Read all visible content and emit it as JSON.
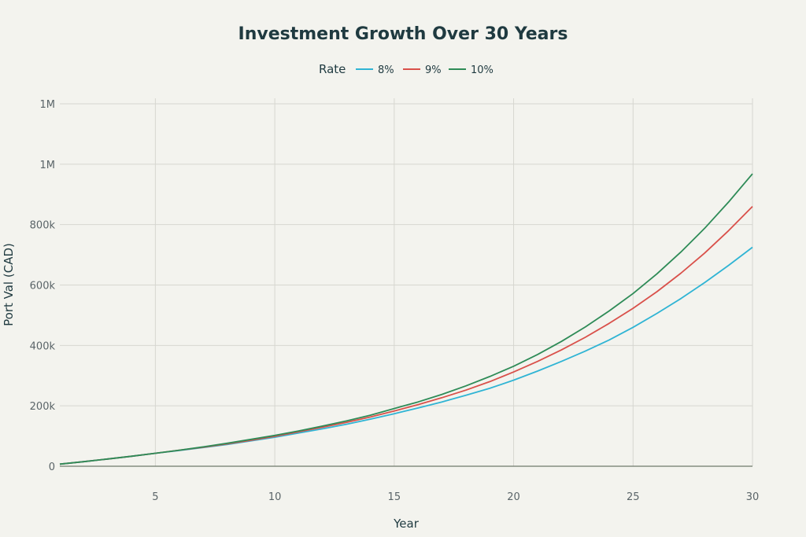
{
  "chart_data": {
    "type": "line",
    "title": "Investment Growth Over 30 Years",
    "xlabel": "Year",
    "ylabel": "Port Val (CAD)",
    "legend_title": "Rate",
    "legend_position": "top-center",
    "grid": true,
    "x": [
      1,
      2,
      3,
      4,
      5,
      6,
      7,
      8,
      9,
      10,
      11,
      12,
      13,
      14,
      15,
      16,
      17,
      18,
      19,
      20,
      21,
      22,
      23,
      24,
      25,
      26,
      27,
      28,
      29,
      30
    ],
    "xlim": [
      1,
      30
    ],
    "ylim": [
      0,
      1200000
    ],
    "xticks": [
      5,
      10,
      15,
      20,
      25,
      30
    ],
    "yticks": [
      {
        "value": 0,
        "label": "0"
      },
      {
        "value": 200000,
        "label": "200k"
      },
      {
        "value": 400000,
        "label": "400k"
      },
      {
        "value": 600000,
        "label": "600k"
      },
      {
        "value": 800000,
        "label": "800k"
      },
      {
        "value": 1000000,
        "label": "1M"
      },
      {
        "value": 1200000,
        "label": "1M"
      }
    ],
    "series": [
      {
        "name": "8%",
        "color": "#2fb4d4",
        "values": [
          7000,
          15000,
          24000,
          33000,
          43000,
          52000,
          62000,
          72000,
          84000,
          96000,
          110000,
          124000,
          139000,
          156000,
          174000,
          193000,
          213000,
          235000,
          258000,
          285000,
          315000,
          347000,
          381000,
          418000,
          460000,
          506000,
          555000,
          608000,
          665000,
          725000
        ]
      },
      {
        "name": "9%",
        "color": "#d9504a",
        "values": [
          7000,
          15000,
          24000,
          33000,
          43000,
          53000,
          63000,
          74000,
          86000,
          99000,
          114000,
          129000,
          145000,
          163000,
          183000,
          204000,
          227000,
          252000,
          280000,
          312000,
          347000,
          385000,
          427000,
          473000,
          523000,
          578000,
          639000,
          706000,
          780000,
          860000
        ]
      },
      {
        "name": "10%",
        "color": "#2e8b57",
        "values": [
          7000,
          15000,
          24000,
          33000,
          43000,
          53000,
          64000,
          76000,
          89000,
          102000,
          117000,
          133000,
          150000,
          169000,
          191000,
          213000,
          238000,
          266000,
          297000,
          331000,
          370000,
          413000,
          461000,
          514000,
          572000,
          637000,
          709000,
          788000,
          875000,
          968000
        ]
      }
    ]
  }
}
